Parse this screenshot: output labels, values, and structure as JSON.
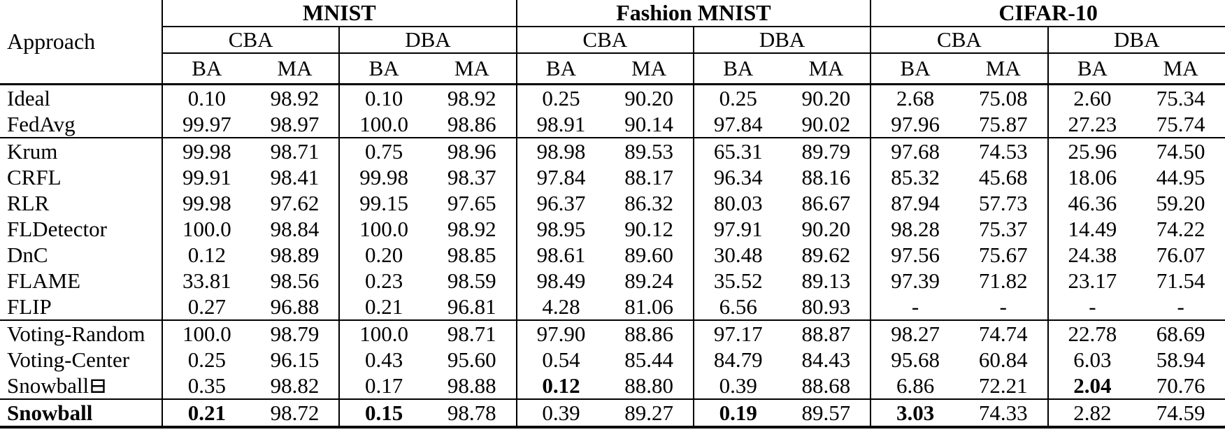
{
  "colors": {
    "background": "#ffffff",
    "text": "#000000",
    "rule": "#000000"
  },
  "header": {
    "approach_label": "Approach",
    "datasets": [
      "MNIST",
      "Fashion MNIST",
      "CIFAR-10"
    ],
    "attack_row": [
      "CBA",
      "DBA",
      "CBA",
      "DBA",
      "CBA",
      "DBA"
    ],
    "metric_row": [
      "BA",
      "MA",
      "BA",
      "MA",
      "BA",
      "MA",
      "BA",
      "MA",
      "BA",
      "MA",
      "BA",
      "MA"
    ]
  },
  "groups": [
    {
      "rows": [
        {
          "name": "Ideal",
          "bold_name": false,
          "bold_values": [],
          "values": [
            "0.10",
            "98.92",
            "0.10",
            "98.92",
            "0.25",
            "90.20",
            "0.25",
            "90.20",
            "2.68",
            "75.08",
            "2.60",
            "75.34"
          ]
        },
        {
          "name": "FedAvg",
          "bold_name": false,
          "bold_values": [],
          "values": [
            "99.97",
            "98.97",
            "100.0",
            "98.86",
            "98.91",
            "90.14",
            "97.84",
            "90.02",
            "97.96",
            "75.87",
            "27.23",
            "75.74"
          ]
        }
      ]
    },
    {
      "rows": [
        {
          "name": "Krum",
          "bold_name": false,
          "bold_values": [],
          "values": [
            "99.98",
            "98.71",
            "0.75",
            "98.96",
            "98.98",
            "89.53",
            "65.31",
            "89.79",
            "97.68",
            "74.53",
            "25.96",
            "74.50"
          ]
        },
        {
          "name": "CRFL",
          "bold_name": false,
          "bold_values": [],
          "values": [
            "99.91",
            "98.41",
            "99.98",
            "98.37",
            "97.84",
            "88.17",
            "96.34",
            "88.16",
            "85.32",
            "45.68",
            "18.06",
            "44.95"
          ]
        },
        {
          "name": "RLR",
          "bold_name": false,
          "bold_values": [],
          "values": [
            "99.98",
            "97.62",
            "99.15",
            "97.65",
            "96.37",
            "86.32",
            "80.03",
            "86.67",
            "87.94",
            "57.73",
            "46.36",
            "59.20"
          ]
        },
        {
          "name": "FLDetector",
          "bold_name": false,
          "bold_values": [],
          "values": [
            "100.0",
            "98.84",
            "100.0",
            "98.92",
            "98.95",
            "90.12",
            "97.91",
            "90.20",
            "98.28",
            "75.37",
            "14.49",
            "74.22"
          ]
        },
        {
          "name": "DnC",
          "bold_name": false,
          "bold_values": [],
          "values": [
            "0.12",
            "98.89",
            "0.20",
            "98.85",
            "98.61",
            "89.60",
            "30.48",
            "89.62",
            "97.56",
            "75.67",
            "24.38",
            "76.07"
          ]
        },
        {
          "name": "FLAME",
          "bold_name": false,
          "bold_values": [],
          "values": [
            "33.81",
            "98.56",
            "0.23",
            "98.59",
            "98.49",
            "89.24",
            "35.52",
            "89.13",
            "97.39",
            "71.82",
            "23.17",
            "71.54"
          ]
        },
        {
          "name": "FLIP",
          "bold_name": false,
          "bold_values": [],
          "values": [
            "0.27",
            "96.88",
            "0.21",
            "96.81",
            "4.28",
            "81.06",
            "6.56",
            "80.93",
            "-",
            "-",
            "-",
            "-"
          ]
        }
      ]
    },
    {
      "rows": [
        {
          "name": "Voting-Random",
          "bold_name": false,
          "bold_values": [],
          "values": [
            "100.0",
            "98.79",
            "100.0",
            "98.71",
            "97.90",
            "88.86",
            "97.17",
            "88.87",
            "98.27",
            "74.74",
            "22.78",
            "68.69"
          ]
        },
        {
          "name": "Voting-Center",
          "bold_name": false,
          "bold_values": [],
          "values": [
            "0.25",
            "96.15",
            "0.43",
            "95.60",
            "0.54",
            "85.44",
            "84.79",
            "84.43",
            "95.68",
            "60.84",
            "6.03",
            "58.94"
          ]
        },
        {
          "name": "Snowball⊟",
          "bold_name": false,
          "bold_values": [
            4,
            10
          ],
          "values": [
            "0.35",
            "98.82",
            "0.17",
            "98.88",
            "0.12",
            "88.80",
            "0.39",
            "88.68",
            "6.86",
            "72.21",
            "2.04",
            "70.76"
          ]
        }
      ]
    },
    {
      "rows": [
        {
          "name": "Snowball",
          "bold_name": true,
          "bold_values": [
            0,
            2,
            6,
            8
          ],
          "values": [
            "0.21",
            "98.72",
            "0.15",
            "98.78",
            "0.39",
            "89.27",
            "0.19",
            "89.57",
            "3.03",
            "74.33",
            "2.82",
            "74.59"
          ]
        }
      ]
    }
  ]
}
